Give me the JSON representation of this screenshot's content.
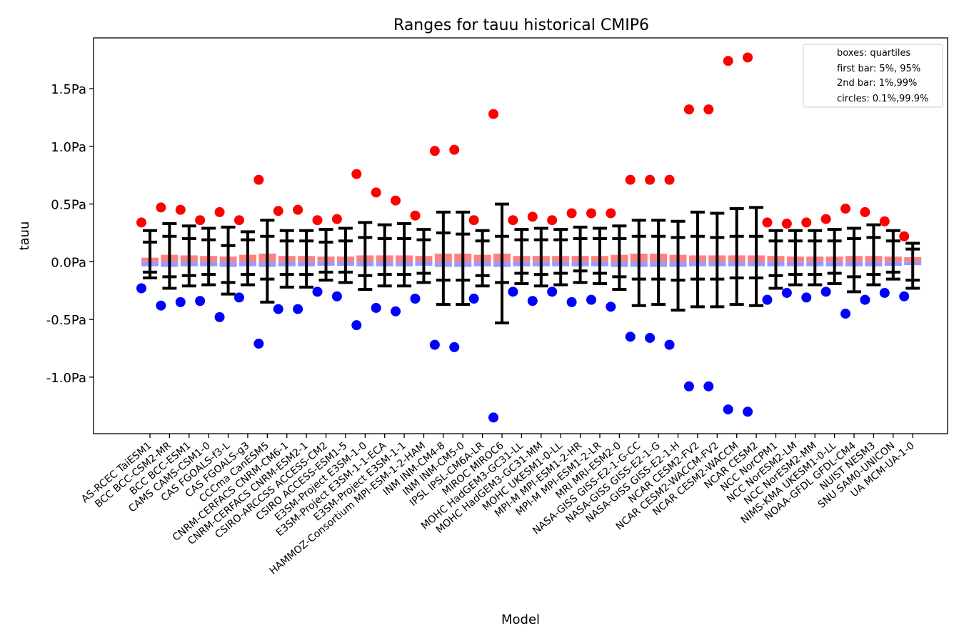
{
  "chart_data": {
    "type": "box-range",
    "title": "Ranges for tauu historical CMIP6",
    "xlabel": "Model",
    "ylabel": "tauu",
    "ylim": [
      -1.49,
      1.94
    ],
    "yticks": [
      {
        "value": 1.5,
        "label": "1.5Pa"
      },
      {
        "value": 1.0,
        "label": "1.0Pa"
      },
      {
        "value": 0.5,
        "label": "0.5Pa"
      },
      {
        "value": 0.0,
        "label": "0.0Pa"
      },
      {
        "value": -0.5,
        "label": "-0.5Pa"
      },
      {
        "value": -1.0,
        "label": "-1.0Pa"
      }
    ],
    "legend": {
      "position": "top-right",
      "entries": [
        "boxes: quartiles",
        "first bar: 5%, 95%",
        "2nd bar: 1%,99%",
        "circles: 0.1%,99.9%"
      ]
    },
    "colors": {
      "box_upper": "#ff8080",
      "box_lower": "#9999ff",
      "circle_high": "#ff0000",
      "circle_low": "#0000ff",
      "bars": "#000000"
    },
    "categories": [
      "AS-RCEC TaiESM1",
      "BCC BCC-CSM2-MR",
      "BCC BCC-ESM1",
      "CAMS CAMS-CSM1-0",
      "CAS FGOALS-f3-L",
      "CAS FGOALS-g3",
      "CCCma CanESM5",
      "CNRM-CERFACS CNRM-CM6-1",
      "CNRM-CERFACS CNRM-ESM2-1",
      "CSIRO-ARCCSS ACCESS-CM2",
      "CSIRO ACCESS-ESM1-5",
      "E3SM-Project E3SM-1-0",
      "E3SM-Project E3SM-1-1-ECA",
      "E3SM-Project E3SM-1-1",
      "HAMMOZ-Consortium MPI-ESM-1-2-HAM",
      "INM INM-CM4-8",
      "INM INM-CM5-0",
      "IPSL IPSL-CM6A-LR",
      "MIROC MIROC6",
      "MOHC HadGEM3-GC31-LL",
      "MOHC HadGEM3-GC31-MM",
      "MOHC UKESM1-0-LL",
      "MPI-M MPI-ESM1-2-HR",
      "MPI-M MPI-ESM1-2-LR",
      "MRI MRI-ESM2-0",
      "NASA-GISS GISS-E2-1-G-CC",
      "NASA-GISS GISS-E2-1-G",
      "NASA-GISS GISS-E2-1-H",
      "NCAR CESM2-FV2",
      "NCAR CESM2-WACCM-FV2",
      "NCAR CESM2-WACCM",
      "NCAR CESM2",
      "NCC NorCPM1",
      "NCC NorESM2-LM",
      "NCC NorESM2-MM",
      "NIMS-KMA UKESM1-0-LL",
      "NOAA-GFDL GFDL-CM4",
      "NUIST NESM3",
      "SNU SAM0-UNICON",
      "UA MCM-UA-1-0"
    ],
    "series": {
      "q3": [
        0.035,
        0.06,
        0.055,
        0.05,
        0.045,
        0.06,
        0.07,
        0.05,
        0.05,
        0.045,
        0.045,
        0.055,
        0.055,
        0.055,
        0.05,
        0.07,
        0.07,
        0.06,
        0.07,
        0.05,
        0.05,
        0.05,
        0.05,
        0.05,
        0.06,
        0.07,
        0.07,
        0.06,
        0.055,
        0.055,
        0.055,
        0.055,
        0.05,
        0.045,
        0.045,
        0.045,
        0.05,
        0.05,
        0.045,
        0.04
      ],
      "q1": [
        -0.04,
        -0.045,
        -0.04,
        -0.04,
        -0.045,
        -0.04,
        -0.045,
        -0.04,
        -0.04,
        -0.035,
        -0.035,
        -0.04,
        -0.04,
        -0.04,
        -0.035,
        -0.045,
        -0.045,
        -0.04,
        -0.045,
        -0.04,
        -0.04,
        -0.04,
        -0.04,
        -0.04,
        -0.045,
        -0.045,
        -0.045,
        -0.045,
        -0.04,
        -0.04,
        -0.04,
        -0.04,
        -0.04,
        -0.04,
        -0.04,
        -0.04,
        -0.04,
        -0.04,
        -0.035,
        -0.03
      ],
      "p95": [
        0.17,
        0.22,
        0.2,
        0.19,
        0.14,
        0.19,
        0.22,
        0.18,
        0.18,
        0.17,
        0.18,
        0.21,
        0.2,
        0.2,
        0.19,
        0.25,
        0.24,
        0.18,
        0.22,
        0.19,
        0.19,
        0.19,
        0.2,
        0.2,
        0.2,
        0.22,
        0.22,
        0.21,
        0.22,
        0.21,
        0.22,
        0.22,
        0.18,
        0.18,
        0.18,
        0.18,
        0.2,
        0.21,
        0.18,
        0.11
      ],
      "p05": [
        -0.09,
        -0.13,
        -0.12,
        -0.11,
        -0.18,
        -0.11,
        -0.15,
        -0.11,
        -0.11,
        -0.09,
        -0.09,
        -0.12,
        -0.11,
        -0.11,
        -0.1,
        -0.16,
        -0.16,
        -0.12,
        -0.18,
        -0.1,
        -0.11,
        -0.1,
        -0.08,
        -0.1,
        -0.13,
        -0.15,
        -0.15,
        -0.16,
        -0.15,
        -0.15,
        -0.14,
        -0.14,
        -0.12,
        -0.11,
        -0.11,
        -0.1,
        -0.13,
        -0.11,
        -0.09,
        -0.16
      ],
      "p99": [
        0.27,
        0.33,
        0.31,
        0.29,
        0.3,
        0.26,
        0.36,
        0.27,
        0.27,
        0.28,
        0.29,
        0.34,
        0.32,
        0.33,
        0.28,
        0.43,
        0.43,
        0.27,
        0.5,
        0.28,
        0.29,
        0.28,
        0.3,
        0.29,
        0.31,
        0.36,
        0.36,
        0.35,
        0.43,
        0.42,
        0.46,
        0.47,
        0.27,
        0.27,
        0.27,
        0.28,
        0.29,
        0.32,
        0.27,
        0.16
      ],
      "p01": [
        -0.14,
        -0.23,
        -0.21,
        -0.2,
        -0.28,
        -0.2,
        -0.35,
        -0.22,
        -0.22,
        -0.16,
        -0.18,
        -0.24,
        -0.21,
        -0.21,
        -0.18,
        -0.37,
        -0.37,
        -0.21,
        -0.53,
        -0.19,
        -0.21,
        -0.2,
        -0.18,
        -0.19,
        -0.24,
        -0.38,
        -0.37,
        -0.42,
        -0.39,
        -0.39,
        -0.37,
        -0.38,
        -0.23,
        -0.2,
        -0.2,
        -0.19,
        -0.26,
        -0.2,
        -0.15,
        -0.23
      ],
      "p999": [
        0.34,
        0.47,
        0.45,
        0.36,
        0.43,
        0.36,
        0.71,
        0.44,
        0.45,
        0.36,
        0.37,
        0.76,
        0.6,
        0.53,
        0.4,
        0.96,
        0.97,
        0.36,
        1.28,
        0.36,
        0.39,
        0.36,
        0.42,
        0.42,
        0.42,
        0.71,
        0.71,
        0.71,
        1.32,
        1.32,
        1.74,
        1.77,
        0.34,
        0.33,
        0.34,
        0.37,
        0.46,
        0.43,
        0.35,
        0.22
      ],
      "p001": [
        -0.23,
        -0.38,
        -0.35,
        -0.34,
        -0.48,
        -0.31,
        -0.71,
        -0.41,
        -0.41,
        -0.26,
        -0.3,
        -0.55,
        -0.4,
        -0.43,
        -0.32,
        -0.72,
        -0.74,
        -0.32,
        -1.35,
        -0.26,
        -0.34,
        -0.26,
        -0.35,
        -0.33,
        -0.39,
        -0.65,
        -0.66,
        -0.72,
        -1.08,
        -1.08,
        -1.28,
        -1.3,
        -0.33,
        -0.27,
        -0.31,
        -0.26,
        -0.45,
        -0.33,
        -0.27,
        -0.3
      ]
    }
  }
}
